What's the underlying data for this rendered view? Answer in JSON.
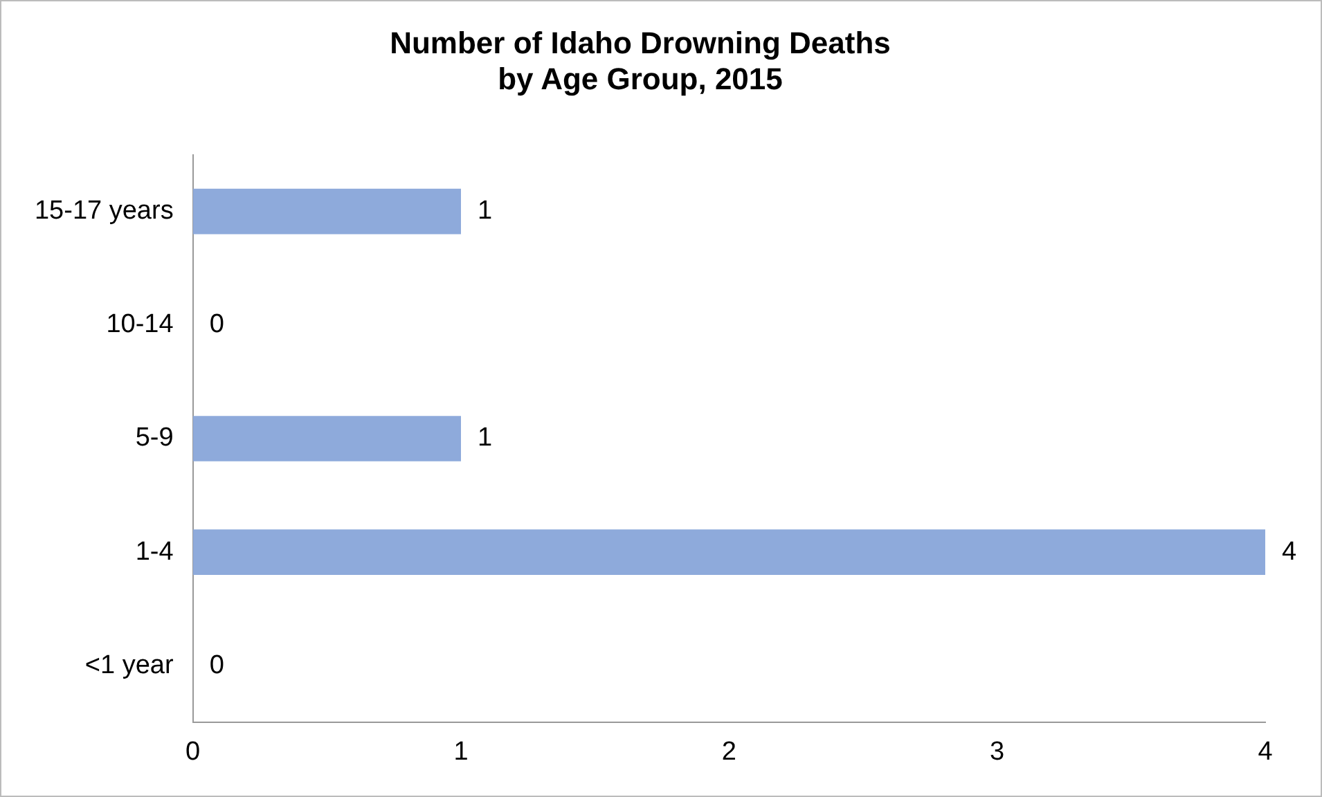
{
  "chart_data": {
    "type": "bar",
    "orientation": "horizontal",
    "title": "Number of Idaho Drowning Deaths\nby Age Group, 2015",
    "categories": [
      "15-17 years",
      "10-14",
      "5-9",
      "1-4",
      "<1 year"
    ],
    "values": [
      1,
      0,
      1,
      4,
      0
    ],
    "color": "#8eaadb",
    "xlim": [
      0,
      4
    ],
    "xticks": [
      0,
      1,
      2,
      3,
      4
    ],
    "grid": false,
    "legend": false,
    "data_labels": true
  }
}
